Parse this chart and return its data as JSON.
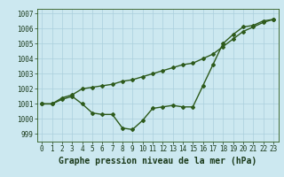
{
  "x": [
    0,
    1,
    2,
    3,
    4,
    5,
    6,
    7,
    8,
    9,
    10,
    11,
    12,
    13,
    14,
    15,
    16,
    17,
    18,
    19,
    20,
    21,
    22,
    23
  ],
  "line1": [
    1001.0,
    1001.0,
    1001.3,
    1001.5,
    1001.0,
    1000.4,
    1000.3,
    1000.3,
    999.4,
    999.3,
    999.9,
    1000.7,
    1000.8,
    1000.9,
    1000.8,
    1000.8,
    1002.2,
    1003.6,
    1005.0,
    1005.6,
    1006.1,
    1006.2,
    1006.5,
    1006.6
  ],
  "line2": [
    1001.0,
    1001.0,
    1001.4,
    1001.6,
    1002.0,
    1002.1,
    1002.2,
    1002.3,
    1002.5,
    1002.6,
    1002.8,
    1003.0,
    1003.2,
    1003.4,
    1003.6,
    1003.7,
    1004.0,
    1004.3,
    1004.8,
    1005.3,
    1005.8,
    1006.1,
    1006.4,
    1006.6
  ],
  "bg_color": "#cce8f0",
  "grid_color": "#aacfdc",
  "line_color": "#2d5a1b",
  "ylabel_min": 999,
  "ylabel_max": 1007,
  "xlabel": "Graphe pression niveau de la mer (hPa)",
  "marker": "D",
  "marker_size": 2.0,
  "line_width": 1.0,
  "tick_fontsize": 5.5,
  "label_fontsize": 7.0
}
